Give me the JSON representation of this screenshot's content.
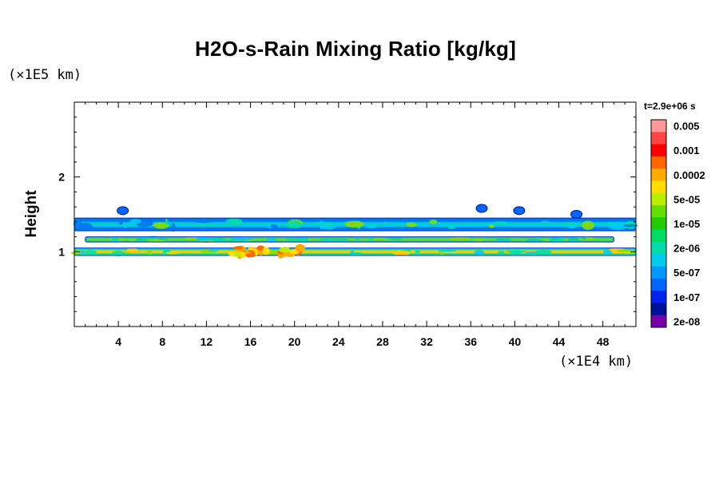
{
  "chart_data": {
    "type": "heatmap",
    "title": "H2O-s-Rain Mixing Ratio [kg/kg]",
    "xlabel": "",
    "ylabel": "Height",
    "x_unit": "(×1E4 km)",
    "y_unit": "(×1E5 km)",
    "time_label": "t=2.9e+06 s",
    "xlim": [
      0,
      51
    ],
    "ylim": [
      0,
      3
    ],
    "x_ticks": [
      "4",
      "8",
      "12",
      "16",
      "20",
      "24",
      "28",
      "32",
      "36",
      "40",
      "44",
      "48"
    ],
    "y_ticks": [
      "1",
      "2"
    ],
    "colorbar": {
      "colors": [
        "#ff9999",
        "#ff4444",
        "#ff0000",
        "#ff6600",
        "#ffaa00",
        "#ffdd00",
        "#bbee00",
        "#66dd00",
        "#22cc00",
        "#00dd66",
        "#00ddaa",
        "#00ccee",
        "#0099ff",
        "#0066ff",
        "#0022ee",
        "#001199",
        "#7700aa"
      ],
      "labels": [
        "0.005",
        "0.001",
        "0.0002",
        "5e-05",
        "1e-05",
        "2e-06",
        "5e-07",
        "1e-07",
        "2e-08"
      ]
    },
    "bands": [
      {
        "name": "upper band",
        "x_start": 0,
        "x_end": 51,
        "height_min": 1.28,
        "height_max": 1.45,
        "value_range": "1e-07 to 5e-07",
        "color": "#0077ee",
        "core_color": "#00ccdd"
      },
      {
        "name": "middle band",
        "x_start": 1,
        "x_end": 49,
        "height_min": 1.13,
        "height_max": 1.2,
        "value_range": "5e-07 to 1e-05",
        "color": "#00ccaa",
        "core_color": "#88dd00"
      },
      {
        "name": "lower band",
        "x_start": 0,
        "x_end": 51,
        "height_min": 0.95,
        "height_max": 1.05,
        "value_range": "2e-06 to 0.0002",
        "color": "#00ddaa",
        "core_color": "#ffcc00"
      }
    ]
  }
}
